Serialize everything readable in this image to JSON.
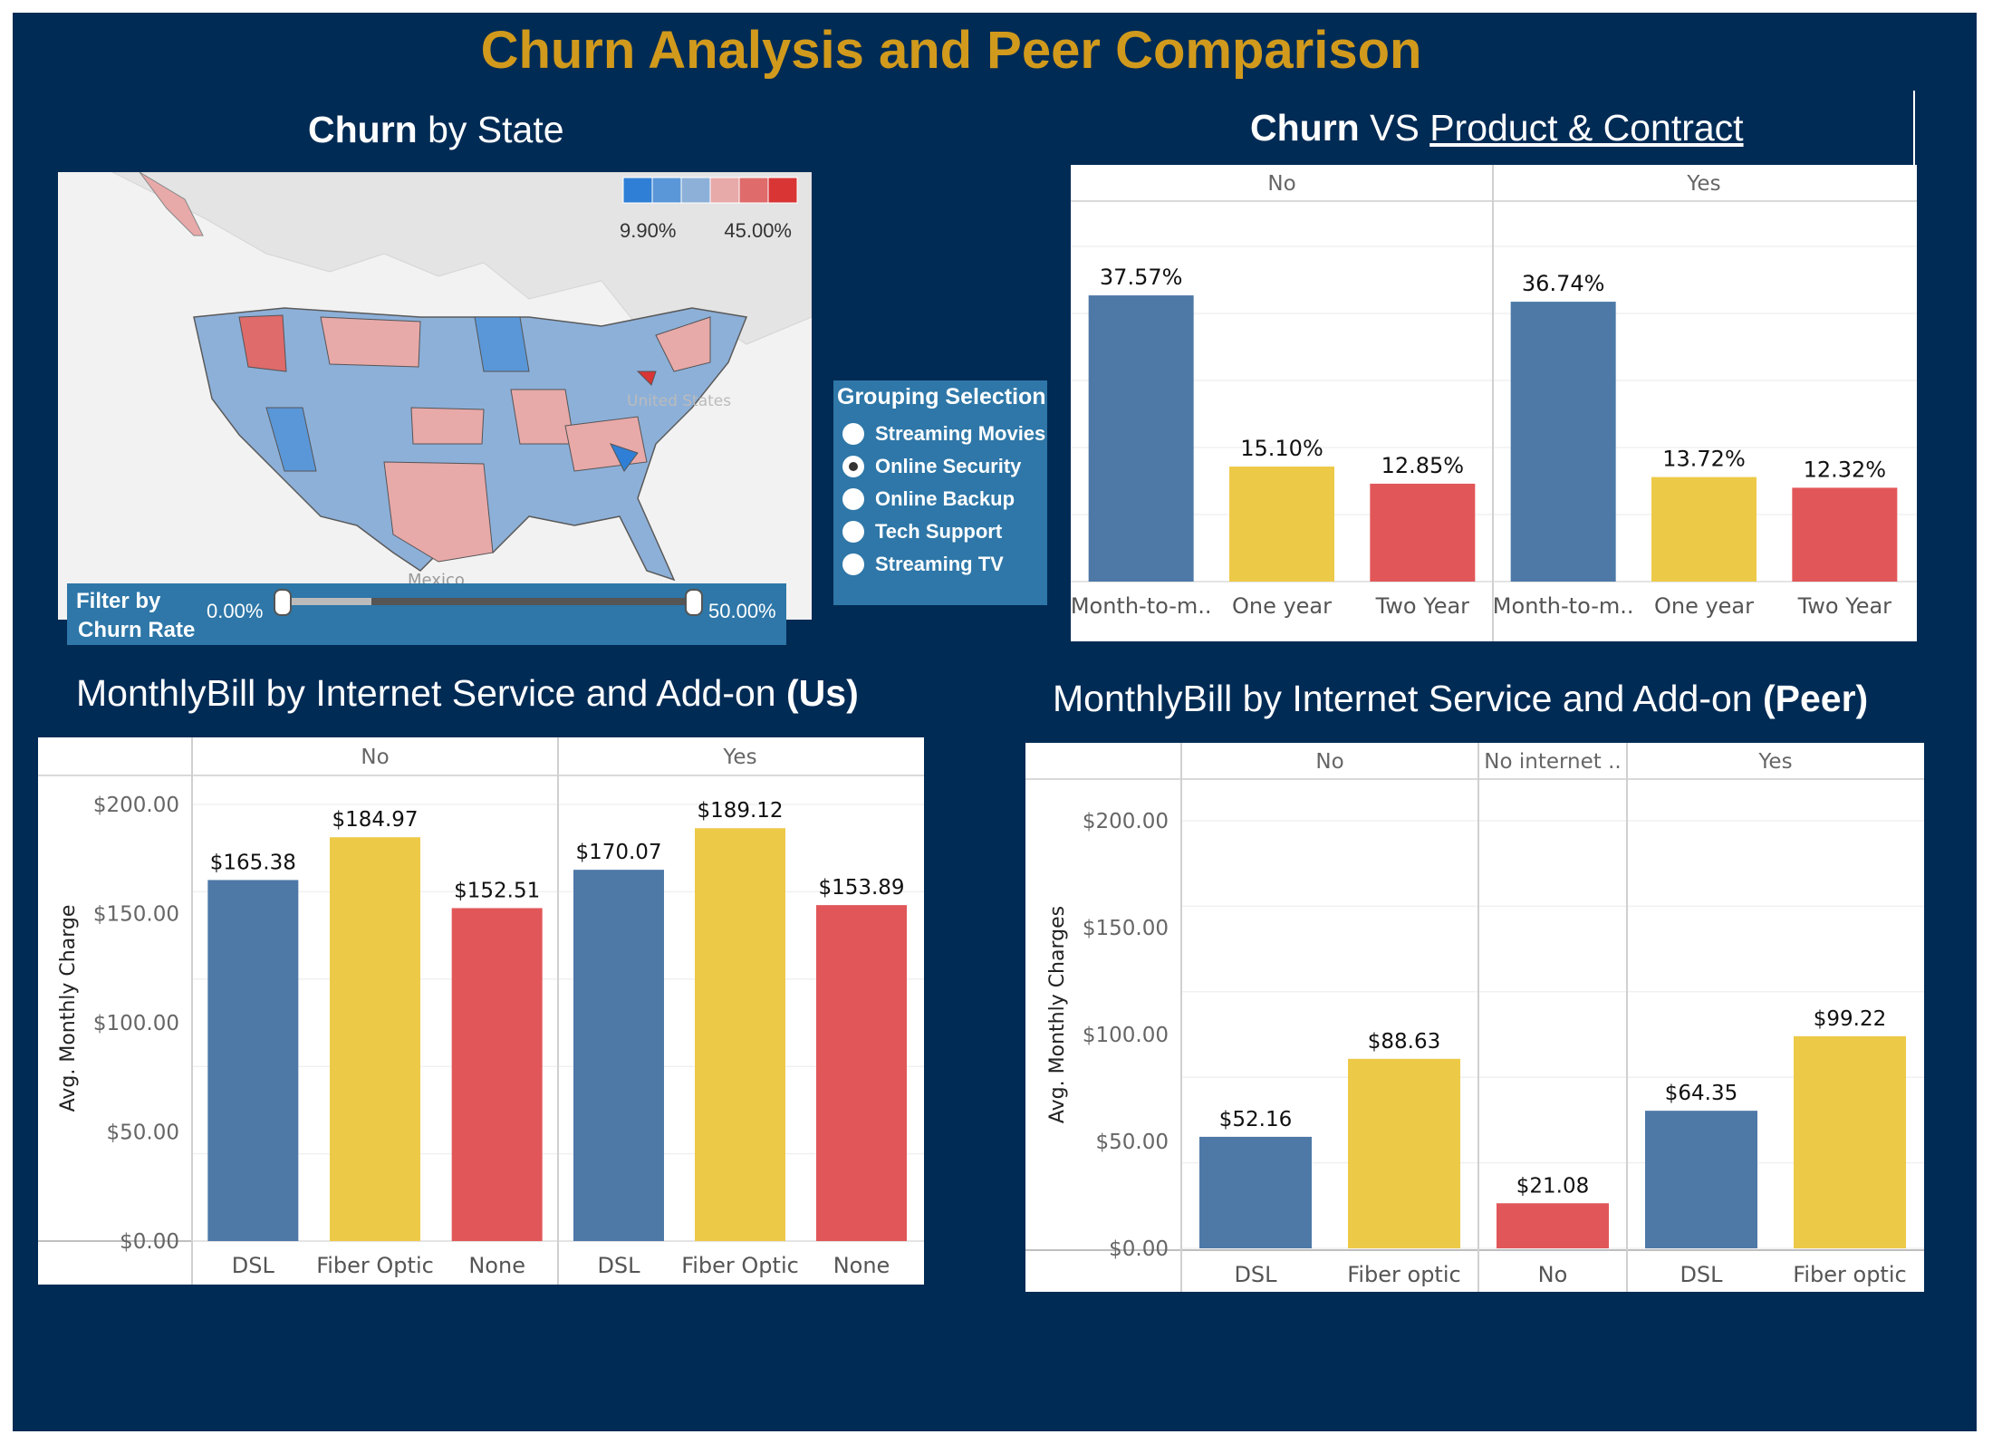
{
  "dashboard": {
    "title": "Churn Analysis and Peer Comparison"
  },
  "map_section": {
    "title_bold": "Churn",
    "title_rest": " by State",
    "legend_min": "9.90%",
    "legend_max": "45.00%",
    "legend_colors": [
      "#2f7fd6",
      "#5a97d8",
      "#8db0d9",
      "#e8a9a9",
      "#df6b6b",
      "#d93535"
    ],
    "label_us": "United States",
    "label_mexico": "Mexico",
    "filter": {
      "label_line1": "Filter by",
      "label_line2": "Churn Rate",
      "min_label": "0.00%",
      "max_label": "50.00%"
    }
  },
  "grouping": {
    "title": "Grouping Selection",
    "options": [
      {
        "label": "Streaming Movies",
        "selected": false
      },
      {
        "label": "Online Security",
        "selected": true
      },
      {
        "label": "Online Backup",
        "selected": false
      },
      {
        "label": "Tech Support",
        "selected": false
      },
      {
        "label": "Streaming TV",
        "selected": false
      }
    ]
  },
  "contract_section": {
    "title_bold": "Churn",
    "title_mid": " VS ",
    "title_link": "Product & Contract"
  },
  "us_section": {
    "title_rest": "MonthlyBill by Internet Service and Add-on ",
    "title_bold": "(Us)"
  },
  "peer_section": {
    "title_rest": "MonthlyBill by Internet Service and Add-on ",
    "title_bold": "(Peer)"
  },
  "colors": {
    "blue": "#4e79a7",
    "yellow": "#edc948",
    "red": "#e15759"
  },
  "chart_data": [
    {
      "id": "contract",
      "type": "bar",
      "ylim": [
        0,
        44
      ],
      "yticks": [],
      "ylabel": "",
      "label_format": "pct",
      "groups": [
        {
          "name": "No",
          "bars": [
            {
              "category": "Month-to-m..",
              "value": 37.57,
              "label": "37.57%",
              "color": "blue"
            },
            {
              "category": "One year",
              "value": 15.1,
              "label": "15.10%",
              "color": "yellow"
            },
            {
              "category": "Two Year",
              "value": 12.85,
              "label": "12.85%",
              "color": "red"
            }
          ]
        },
        {
          "name": "Yes",
          "bars": [
            {
              "category": "Month-to-m..",
              "value": 36.74,
              "label": "36.74%",
              "color": "blue"
            },
            {
              "category": "One year",
              "value": 13.72,
              "label": "13.72%",
              "color": "yellow"
            },
            {
              "category": "Two Year",
              "value": 12.32,
              "label": "12.32%",
              "color": "red"
            }
          ]
        }
      ]
    },
    {
      "id": "us",
      "type": "bar",
      "ylim": [
        0,
        200
      ],
      "yticks": [
        "$0.00",
        "$50.00",
        "$100.00",
        "$150.00",
        "$200.00"
      ],
      "ylabel": "Avg. Monthly Charge",
      "groups": [
        {
          "name": "No",
          "bars": [
            {
              "category": "DSL",
              "value": 165.38,
              "label": "$165.38",
              "color": "blue"
            },
            {
              "category": "Fiber Optic",
              "value": 184.97,
              "label": "$184.97",
              "color": "yellow"
            },
            {
              "category": "None",
              "value": 152.51,
              "label": "$152.51",
              "color": "red"
            }
          ]
        },
        {
          "name": "Yes",
          "bars": [
            {
              "category": "DSL",
              "value": 170.07,
              "label": "$170.07",
              "color": "blue"
            },
            {
              "category": "Fiber Optic",
              "value": 189.12,
              "label": "$189.12",
              "color": "yellow"
            },
            {
              "category": "None",
              "value": 153.89,
              "label": "$153.89",
              "color": "red"
            }
          ]
        }
      ]
    },
    {
      "id": "peer",
      "type": "bar",
      "ylim": [
        0,
        200
      ],
      "yticks": [
        "$0.00",
        "$50.00",
        "$100.00",
        "$150.00",
        "$200.00"
      ],
      "ylabel": "Avg. Monthly Charges",
      "groups": [
        {
          "name": "No",
          "bars": [
            {
              "category": "DSL",
              "value": 52.16,
              "label": "$52.16",
              "color": "blue"
            },
            {
              "category": "Fiber optic",
              "value": 88.63,
              "label": "$88.63",
              "color": "yellow"
            }
          ]
        },
        {
          "name": "No internet ..",
          "bars": [
            {
              "category": "No",
              "value": 21.08,
              "label": "$21.08",
              "color": "red"
            }
          ]
        },
        {
          "name": "Yes",
          "bars": [
            {
              "category": "DSL",
              "value": 64.35,
              "label": "$64.35",
              "color": "blue"
            },
            {
              "category": "Fiber optic",
              "value": 99.22,
              "label": "$99.22",
              "color": "yellow"
            }
          ]
        }
      ]
    }
  ]
}
